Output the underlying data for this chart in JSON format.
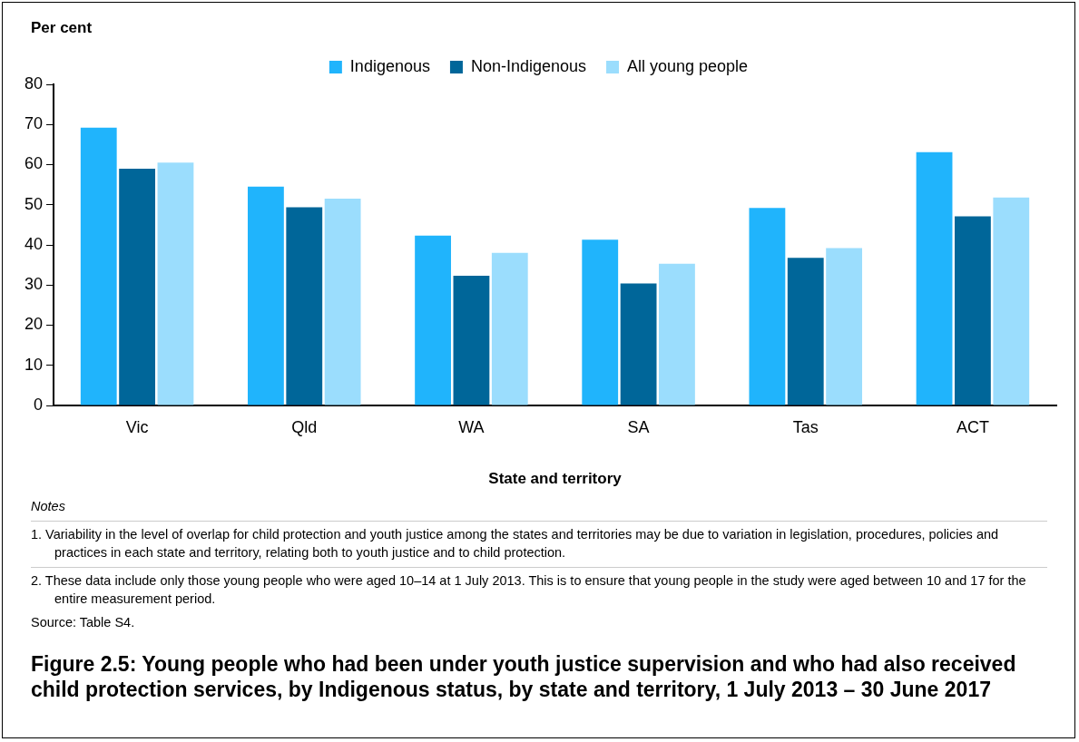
{
  "chart_data": {
    "type": "bar",
    "title": "Figure 2.5: Young people who had been under youth justice supervision and who had also received child protection services, by Indigenous status, by state and territory, 1 July 2013 – 30 June 2017",
    "ylabel": "Per cent",
    "xlabel": "State and territory",
    "categories": [
      "Vic",
      "Qld",
      "WA",
      "SA",
      "Tas",
      "ACT"
    ],
    "series": [
      {
        "name": "Indigenous",
        "color": "#20b4fc",
        "values": [
          69.2,
          54.5,
          42.3,
          41.3,
          49.2,
          63.1
        ]
      },
      {
        "name": "Non-Indigenous",
        "color": "#006699",
        "values": [
          59.0,
          49.4,
          32.3,
          30.4,
          36.8,
          47.1
        ]
      },
      {
        "name": "All young people",
        "color": "#9bddfd",
        "values": [
          60.5,
          51.5,
          38.0,
          35.3,
          39.2,
          51.8
        ]
      }
    ],
    "ylim": [
      0,
      80
    ],
    "yticks": [
      0,
      10,
      20,
      30,
      40,
      50,
      60,
      70,
      80
    ],
    "grid": false,
    "legend": "top",
    "annotations": [
      "Notes",
      "1.  Variability in the level of overlap for child protection and youth justice among the states and territories may be due to variation in legislation, procedures, policies and practices in each state and territory, relating both to youth justice and to child protection.",
      "2.  These data include only those young people who were aged 10–14 at 1 July 2013. This is to ensure that young people in the study were aged between 10 and 17 for the entire measurement period.",
      "Source: Table S4."
    ]
  }
}
